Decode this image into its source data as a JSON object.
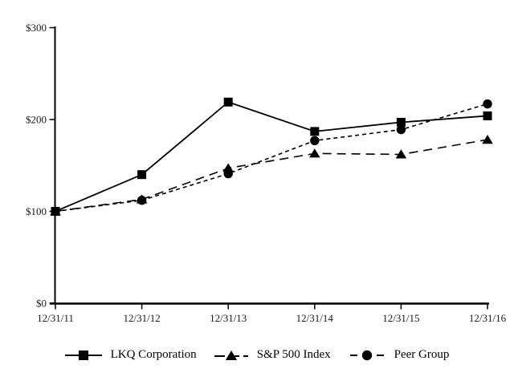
{
  "chart_data": {
    "type": "line",
    "title": "",
    "xlabel": "",
    "ylabel": "",
    "x_categories": [
      "12/31/11",
      "12/31/12",
      "12/31/13",
      "12/31/14",
      "12/31/15",
      "12/31/16"
    ],
    "series": [
      {
        "name": "LKQ Corporation",
        "values": [
          100,
          140,
          219,
          187,
          197,
          204
        ],
        "marker": "square",
        "line_style": "solid"
      },
      {
        "name": "S&P 500 Index",
        "values": [
          100,
          113,
          147,
          163,
          162,
          178
        ],
        "marker": "triangle",
        "line_style": "long-dash"
      },
      {
        "name": "Peer Group",
        "values": [
          100,
          112,
          141,
          177,
          189,
          217
        ],
        "marker": "circle",
        "line_style": "short-dash"
      }
    ],
    "y_ticks": [
      {
        "value": 0,
        "label": "$0"
      },
      {
        "value": 100,
        "label": "$100"
      },
      {
        "value": 200,
        "label": "$200"
      },
      {
        "value": 300,
        "label": "$300"
      }
    ],
    "ylim": [
      0,
      300
    ],
    "grid": false,
    "legend_position": "bottom",
    "line_color": "#000000",
    "background_color": "#ffffff"
  }
}
